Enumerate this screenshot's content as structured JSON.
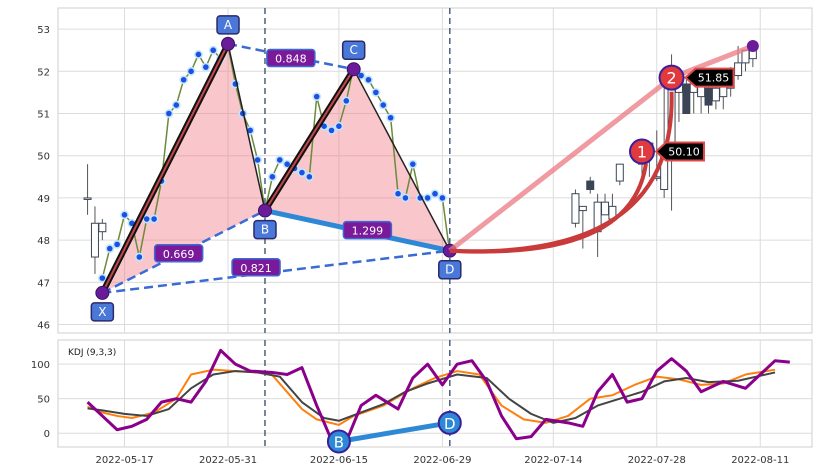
{
  "chart_data": [
    {
      "type": "candlestick",
      "title": "",
      "xlabel": "",
      "ylabel": "",
      "ylim": [
        45.8,
        53.5
      ],
      "y_ticks": [
        "46",
        "47",
        "48",
        "49",
        "50",
        "51",
        "52",
        "53"
      ],
      "x_ticks": [
        {
          "label": "2022-05-17",
          "date": "2022-05-17"
        },
        {
          "label": "2022-05-31",
          "date": "2022-05-31"
        },
        {
          "label": "2022-06-15",
          "date": "2022-06-15"
        },
        {
          "label": "2022-06-29",
          "date": "2022-06-29"
        },
        {
          "label": "2022-07-14",
          "date": "2022-07-14"
        },
        {
          "label": "2022-07-28",
          "date": "2022-07-28"
        },
        {
          "label": "2022-08-11",
          "date": "2022-08-11"
        }
      ],
      "x_range": [
        "2022-05-08",
        "2022-08-18"
      ],
      "grid": true,
      "candles": [
        {
          "date": "2022-05-12",
          "open": 49.0,
          "high": 49.8,
          "low": 48.6,
          "close": 49.0
        },
        {
          "date": "2022-05-13",
          "open": 47.6,
          "high": 48.8,
          "low": 47.2,
          "close": 48.4
        },
        {
          "date": "2022-05-14",
          "open": 48.2,
          "high": 48.5,
          "low": 48.0,
          "close": 48.4
        },
        {
          "date": "2022-07-17",
          "open": 48.4,
          "high": 49.2,
          "low": 48.3,
          "close": 49.1
        },
        {
          "date": "2022-07-18",
          "open": 48.7,
          "high": 48.8,
          "low": 47.8,
          "close": 48.8
        },
        {
          "date": "2022-07-19",
          "open": 49.4,
          "high": 49.5,
          "low": 49.1,
          "close": 49.2
        },
        {
          "date": "2022-07-20",
          "open": 48.2,
          "high": 49.1,
          "low": 47.6,
          "close": 48.9
        },
        {
          "date": "2022-07-21",
          "open": 48.6,
          "high": 49.1,
          "low": 48.6,
          "close": 48.9
        },
        {
          "date": "2022-07-22",
          "open": 48.5,
          "high": 49.1,
          "low": 48.4,
          "close": 48.8
        },
        {
          "date": "2022-07-23",
          "open": 49.4,
          "high": 49.8,
          "low": 49.3,
          "close": 49.8
        },
        {
          "date": "2022-07-26",
          "open": 49.8,
          "high": 50.0,
          "low": 49.5,
          "close": 49.9
        },
        {
          "date": "2022-07-27",
          "open": 50.0,
          "high": 50.3,
          "low": 49.5,
          "close": 50.3
        },
        {
          "date": "2022-07-28",
          "open": 49.5,
          "high": 50.6,
          "low": 49.4,
          "close": 49.5
        },
        {
          "date": "2022-07-29",
          "open": 49.2,
          "high": 51.6,
          "low": 49.0,
          "close": 50.1
        },
        {
          "date": "2022-07-30",
          "open": 50.0,
          "high": 52.4,
          "low": 48.7,
          "close": 51.8
        },
        {
          "date": "2022-07-31",
          "open": 51.5,
          "high": 51.9,
          "low": 50.8,
          "close": 51.7
        },
        {
          "date": "2022-08-01",
          "open": 51.7,
          "high": 51.9,
          "low": 51.0,
          "close": 51.0
        },
        {
          "date": "2022-08-02",
          "open": 51.5,
          "high": 51.8,
          "low": 51.0,
          "close": 51.7
        },
        {
          "date": "2022-08-03",
          "open": 51.4,
          "high": 51.7,
          "low": 51.0,
          "close": 51.7
        },
        {
          "date": "2022-08-04",
          "open": 51.6,
          "high": 51.8,
          "low": 51.0,
          "close": 51.2
        },
        {
          "date": "2022-08-05",
          "open": 51.3,
          "high": 51.8,
          "low": 51.1,
          "close": 51.6
        },
        {
          "date": "2022-08-06",
          "open": 51.4,
          "high": 51.9,
          "low": 51.1,
          "close": 51.8
        },
        {
          "date": "2022-08-07",
          "open": 51.6,
          "high": 52.1,
          "low": 51.4,
          "close": 52.0
        },
        {
          "date": "2022-08-08",
          "open": 51.9,
          "high": 52.6,
          "low": 51.8,
          "close": 52.2
        },
        {
          "date": "2022-08-09",
          "open": 52.2,
          "high": 52.5,
          "low": 52.0,
          "close": 52.5
        },
        {
          "date": "2022-08-10",
          "open": 52.3,
          "high": 52.6,
          "low": 52.1,
          "close": 52.5
        }
      ],
      "price_line": [
        [
          "2022-05-14",
          47.1
        ],
        [
          "2022-05-15",
          47.8
        ],
        [
          "2022-05-16",
          47.9
        ],
        [
          "2022-05-17",
          48.6
        ],
        [
          "2022-05-18",
          48.4
        ],
        [
          "2022-05-19",
          47.6
        ],
        [
          "2022-05-20",
          48.5
        ],
        [
          "2022-05-21",
          48.5
        ],
        [
          "2022-05-22",
          49.4
        ],
        [
          "2022-05-23",
          51.0
        ],
        [
          "2022-05-24",
          51.2
        ],
        [
          "2022-05-25",
          51.8
        ],
        [
          "2022-05-26",
          52.0
        ],
        [
          "2022-05-27",
          52.4
        ],
        [
          "2022-05-28",
          52.1
        ],
        [
          "2022-05-29",
          52.5
        ],
        [
          "2022-05-30",
          52.3
        ],
        [
          "2022-05-31",
          52.6
        ],
        [
          "2022-06-01",
          51.7
        ],
        [
          "2022-06-02",
          51.0
        ],
        [
          "2022-06-03",
          50.6
        ],
        [
          "2022-06-04",
          49.9
        ],
        [
          "2022-06-05",
          48.7
        ],
        [
          "2022-06-06",
          49.5
        ],
        [
          "2022-06-07",
          49.9
        ],
        [
          "2022-06-08",
          49.8
        ],
        [
          "2022-06-09",
          49.7
        ],
        [
          "2022-06-10",
          49.6
        ],
        [
          "2022-06-11",
          49.5
        ],
        [
          "2022-06-12",
          51.4
        ],
        [
          "2022-06-13",
          50.7
        ],
        [
          "2022-06-14",
          50.6
        ],
        [
          "2022-06-15",
          50.7
        ],
        [
          "2022-06-16",
          51.3
        ],
        [
          "2022-06-17",
          52.1
        ],
        [
          "2022-06-18",
          51.9
        ],
        [
          "2022-06-19",
          51.8
        ],
        [
          "2022-06-20",
          51.5
        ],
        [
          "2022-06-21",
          51.2
        ],
        [
          "2022-06-22",
          50.9
        ],
        [
          "2022-06-23",
          49.1
        ],
        [
          "2022-06-24",
          49.0
        ],
        [
          "2022-06-25",
          49.8
        ],
        [
          "2022-06-26",
          49.0
        ],
        [
          "2022-06-27",
          49.0
        ],
        [
          "2022-06-28",
          49.1
        ],
        [
          "2022-06-29",
          49.0
        ],
        [
          "2022-06-30",
          47.7
        ]
      ],
      "pattern_points": [
        {
          "label": "X",
          "date": "2022-05-14",
          "price": 46.75
        },
        {
          "label": "A",
          "date": "2022-05-31",
          "price": 52.65
        },
        {
          "label": "B",
          "date": "2022-06-05",
          "price": 48.7
        },
        {
          "label": "C",
          "date": "2022-06-17",
          "price": 52.05
        },
        {
          "label": "D",
          "date": "2022-06-30",
          "price": 47.75
        }
      ],
      "ratios": [
        {
          "label": "0.848",
          "from": "A",
          "to": "C"
        },
        {
          "label": "0.669",
          "from": "X",
          "to": "B"
        },
        {
          "label": "0.821",
          "from": "X",
          "to": "D"
        },
        {
          "label": "1.299",
          "from": "B",
          "to": "D"
        }
      ],
      "projections": [
        {
          "label": "1",
          "value": "50.10",
          "date": "2022-07-26",
          "price": 50.1
        },
        {
          "label": "2",
          "value": "51.85",
          "date": "2022-07-30",
          "price": 51.85
        }
      ],
      "target_end": {
        "date": "2022-08-10",
        "price": 52.6
      }
    },
    {
      "type": "line",
      "title": "",
      "legend_text": "KDJ (9,3,3)",
      "ylim": [
        -20,
        135
      ],
      "y_ticks": [
        "0",
        "50",
        "100"
      ],
      "series": [
        {
          "name": "K",
          "color": "#ff7f0e",
          "points": [
            [
              "2022-05-12",
              38
            ],
            [
              "2022-05-14",
              30
            ],
            [
              "2022-05-16",
              25
            ],
            [
              "2022-05-18",
              22
            ],
            [
              "2022-05-21",
              30
            ],
            [
              "2022-05-24",
              50
            ],
            [
              "2022-05-26",
              85
            ],
            [
              "2022-05-29",
              92
            ],
            [
              "2022-06-01",
              90
            ],
            [
              "2022-06-04",
              88
            ],
            [
              "2022-06-06",
              84
            ],
            [
              "2022-06-10",
              35
            ],
            [
              "2022-06-12",
              20
            ],
            [
              "2022-06-15",
              12
            ],
            [
              "2022-06-17",
              25
            ],
            [
              "2022-06-21",
              40
            ],
            [
              "2022-06-25",
              65
            ],
            [
              "2022-06-28",
              80
            ],
            [
              "2022-07-01",
              90
            ],
            [
              "2022-07-04",
              85
            ],
            [
              "2022-07-07",
              40
            ],
            [
              "2022-07-10",
              20
            ],
            [
              "2022-07-13",
              15
            ],
            [
              "2022-07-16",
              25
            ],
            [
              "2022-07-19",
              50
            ],
            [
              "2022-07-22",
              55
            ],
            [
              "2022-07-25",
              70
            ],
            [
              "2022-07-28",
              82
            ],
            [
              "2022-07-31",
              78
            ],
            [
              "2022-08-03",
              70
            ],
            [
              "2022-08-06",
              72
            ],
            [
              "2022-08-09",
              85
            ],
            [
              "2022-08-13",
              92
            ]
          ]
        },
        {
          "name": "D",
          "color": "#444444",
          "points": [
            [
              "2022-05-12",
              36
            ],
            [
              "2022-05-14",
              33
            ],
            [
              "2022-05-17",
              28
            ],
            [
              "2022-05-20",
              25
            ],
            [
              "2022-05-23",
              35
            ],
            [
              "2022-05-26",
              65
            ],
            [
              "2022-05-29",
              85
            ],
            [
              "2022-06-01",
              90
            ],
            [
              "2022-06-04",
              88
            ],
            [
              "2022-06-07",
              82
            ],
            [
              "2022-06-10",
              45
            ],
            [
              "2022-06-13",
              22
            ],
            [
              "2022-06-15",
              18
            ],
            [
              "2022-06-18",
              30
            ],
            [
              "2022-06-21",
              42
            ],
            [
              "2022-06-24",
              60
            ],
            [
              "2022-06-27",
              72
            ],
            [
              "2022-07-01",
              85
            ],
            [
              "2022-07-05",
              80
            ],
            [
              "2022-07-08",
              50
            ],
            [
              "2022-07-11",
              28
            ],
            [
              "2022-07-14",
              15
            ],
            [
              "2022-07-17",
              22
            ],
            [
              "2022-07-20",
              40
            ],
            [
              "2022-07-23",
              50
            ],
            [
              "2022-07-26",
              60
            ],
            [
              "2022-07-29",
              75
            ],
            [
              "2022-08-01",
              80
            ],
            [
              "2022-08-04",
              74
            ],
            [
              "2022-08-08",
              76
            ],
            [
              "2022-08-13",
              88
            ]
          ]
        },
        {
          "name": "J",
          "color": "#8b008b",
          "points": [
            [
              "2022-05-12",
              45
            ],
            [
              "2022-05-14",
              25
            ],
            [
              "2022-05-16",
              5
            ],
            [
              "2022-05-18",
              10
            ],
            [
              "2022-05-20",
              20
            ],
            [
              "2022-05-22",
              45
            ],
            [
              "2022-05-24",
              50
            ],
            [
              "2022-05-26",
              45
            ],
            [
              "2022-05-28",
              75
            ],
            [
              "2022-05-30",
              120
            ],
            [
              "2022-06-01",
              100
            ],
            [
              "2022-06-03",
              90
            ],
            [
              "2022-06-06",
              88
            ],
            [
              "2022-06-08",
              85
            ],
            [
              "2022-06-10",
              95
            ],
            [
              "2022-06-12",
              40
            ],
            [
              "2022-06-14",
              -10
            ],
            [
              "2022-06-16",
              -12
            ],
            [
              "2022-06-18",
              40
            ],
            [
              "2022-06-20",
              55
            ],
            [
              "2022-06-23",
              35
            ],
            [
              "2022-06-25",
              80
            ],
            [
              "2022-06-27",
              100
            ],
            [
              "2022-06-29",
              70
            ],
            [
              "2022-07-01",
              100
            ],
            [
              "2022-07-03",
              105
            ],
            [
              "2022-07-05",
              75
            ],
            [
              "2022-07-07",
              25
            ],
            [
              "2022-07-09",
              -8
            ],
            [
              "2022-07-11",
              -5
            ],
            [
              "2022-07-13",
              20
            ],
            [
              "2022-07-16",
              15
            ],
            [
              "2022-07-18",
              10
            ],
            [
              "2022-07-20",
              60
            ],
            [
              "2022-07-22",
              85
            ],
            [
              "2022-07-24",
              45
            ],
            [
              "2022-07-26",
              50
            ],
            [
              "2022-07-28",
              90
            ],
            [
              "2022-07-30",
              108
            ],
            [
              "2022-08-01",
              90
            ],
            [
              "2022-08-03",
              60
            ],
            [
              "2022-08-06",
              75
            ],
            [
              "2022-08-09",
              65
            ],
            [
              "2022-08-11",
              85
            ],
            [
              "2022-08-13",
              105
            ],
            [
              "2022-08-15",
              103
            ]
          ]
        }
      ],
      "markers": [
        {
          "label": "B",
          "date": "2022-06-15",
          "value": -12
        },
        {
          "label": "D",
          "date": "2022-06-30",
          "value": 15
        }
      ]
    }
  ]
}
